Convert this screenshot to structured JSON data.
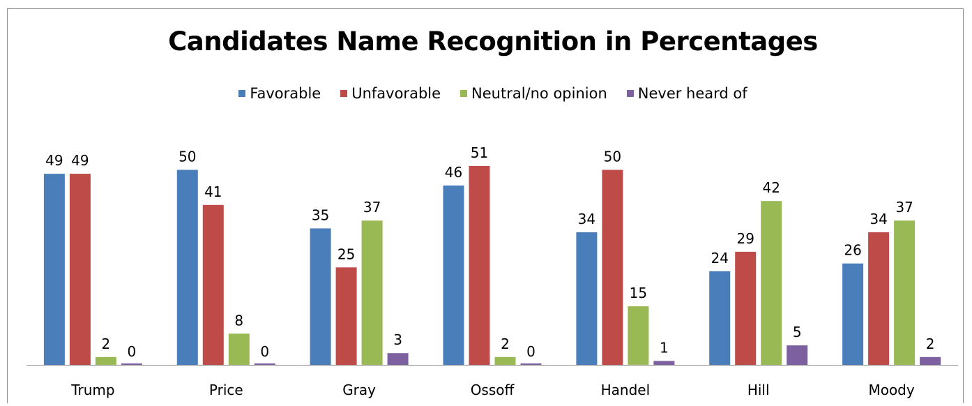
{
  "chart_data": {
    "type": "bar",
    "title": "Candidates Name Recognition in Percentages",
    "categories": [
      "Trump",
      "Price",
      "Gray",
      "Ossoff",
      "Handel",
      "Hill",
      "Moody"
    ],
    "series": [
      {
        "name": "Favorable",
        "color": "#4a7ebb",
        "values": [
          49,
          50,
          35,
          46,
          34,
          24,
          26
        ]
      },
      {
        "name": "Unfavorable",
        "color": "#be4b48",
        "values": [
          49,
          41,
          25,
          51,
          50,
          29,
          34
        ]
      },
      {
        "name": "Neutral/no opinion",
        "color": "#98b954",
        "values": [
          2,
          8,
          37,
          2,
          15,
          42,
          37
        ]
      },
      {
        "name": "Never heard of",
        "color": "#7d60a0",
        "values": [
          0,
          0,
          3,
          0,
          1,
          5,
          2
        ]
      }
    ],
    "ylim": [
      0,
      51
    ],
    "grid": false,
    "legend_position": "top",
    "data_labels": true
  }
}
